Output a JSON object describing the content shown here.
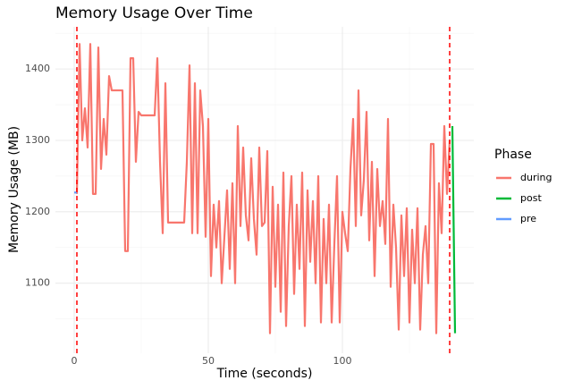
{
  "chart_data": {
    "type": "line",
    "title": "Memory Usage Over Time",
    "x_label": "Time (seconds)",
    "y_label": "Memory Usage (MB)",
    "legend_title": "Phase",
    "legend_position": "right",
    "grid": true,
    "xlim": [
      -7,
      149
    ],
    "ylim": [
      1002,
      1459
    ],
    "xticks": [
      0,
      50,
      100
    ],
    "yticks": [
      1100,
      1200,
      1300,
      1400
    ],
    "x_minor_ticks": [
      25,
      75,
      125
    ],
    "y_minor_ticks": [
      1050,
      1150,
      1250,
      1350,
      1450
    ],
    "vlines": [
      1,
      140
    ],
    "vline_color": "#ff0000",
    "series": [
      {
        "name": "during",
        "color": "#f8766d",
        "x": [
          1,
          2,
          3,
          4,
          5,
          6,
          7,
          8,
          9,
          10,
          11,
          12,
          13,
          14,
          15,
          16,
          17,
          18,
          19,
          20,
          21,
          22,
          23,
          24,
          25,
          26,
          27,
          28,
          29,
          30,
          31,
          32,
          33,
          34,
          35,
          36,
          37,
          38,
          39,
          40,
          41,
          42,
          43,
          44,
          45,
          46,
          47,
          48,
          49,
          50,
          51,
          52,
          53,
          54,
          55,
          56,
          57,
          58,
          59,
          60,
          61,
          62,
          63,
          64,
          65,
          66,
          67,
          68,
          69,
          70,
          71,
          72,
          73,
          74,
          75,
          76,
          77,
          78,
          79,
          80,
          81,
          82,
          83,
          84,
          85,
          86,
          87,
          88,
          89,
          90,
          91,
          92,
          93,
          94,
          95,
          96,
          97,
          98,
          99,
          100,
          101,
          102,
          103,
          104,
          105,
          106,
          107,
          108,
          109,
          110,
          111,
          112,
          113,
          114,
          115,
          116,
          117,
          118,
          119,
          120,
          121,
          122,
          123,
          124,
          125,
          126,
          127,
          128,
          129,
          130,
          131,
          132,
          133,
          134,
          135,
          136,
          137,
          138,
          139,
          140
        ],
        "values": [
          1225,
          1435,
          1300,
          1345,
          1290,
          1435,
          1225,
          1225,
          1430,
          1260,
          1330,
          1280,
          1390,
          1370,
          1370,
          1370,
          1370,
          1370,
          1145,
          1145,
          1415,
          1415,
          1270,
          1340,
          1335,
          1335,
          1335,
          1335,
          1335,
          1335,
          1415,
          1270,
          1170,
          1380,
          1185,
          1185,
          1185,
          1185,
          1185,
          1185,
          1185,
          1270,
          1405,
          1170,
          1380,
          1170,
          1370,
          1320,
          1165,
          1330,
          1110,
          1210,
          1150,
          1215,
          1100,
          1165,
          1230,
          1120,
          1240,
          1100,
          1320,
          1180,
          1290,
          1195,
          1160,
          1275,
          1190,
          1140,
          1290,
          1180,
          1185,
          1285,
          1030,
          1235,
          1095,
          1210,
          1060,
          1255,
          1040,
          1180,
          1250,
          1085,
          1210,
          1120,
          1255,
          1040,
          1230,
          1130,
          1215,
          1100,
          1250,
          1045,
          1190,
          1100,
          1210,
          1045,
          1155,
          1250,
          1045,
          1200,
          1170,
          1145,
          1260,
          1330,
          1180,
          1370,
          1195,
          1245,
          1340,
          1160,
          1270,
          1110,
          1260,
          1180,
          1215,
          1155,
          1330,
          1095,
          1210,
          1150,
          1035,
          1195,
          1110,
          1205,
          1045,
          1175,
          1100,
          1205,
          1035,
          1140,
          1180,
          1100,
          1295,
          1295,
          1030,
          1240,
          1170,
          1320,
          1225,
          1300
        ]
      },
      {
        "name": "post",
        "color": "#00ba38",
        "x": [
          141,
          142
        ],
        "values": [
          1320,
          1030
        ]
      },
      {
        "name": "pre",
        "color": "#619cff",
        "x": [
          0,
          1
        ],
        "values": [
          1227,
          1227
        ]
      }
    ]
  }
}
